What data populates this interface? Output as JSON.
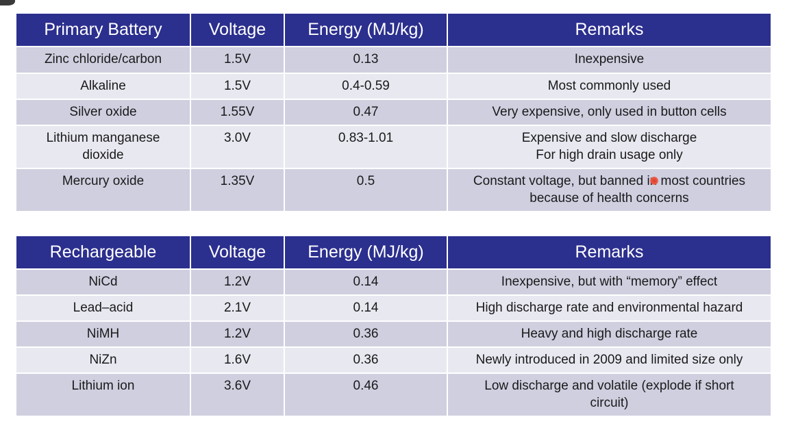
{
  "primary_table": {
    "headers": [
      "Primary Battery",
      "Voltage",
      "Energy (MJ/kg)",
      "Remarks"
    ],
    "rows": [
      {
        "battery": [
          "Zinc chloride/carbon"
        ],
        "voltage": "1.5V",
        "energy": "0.13",
        "remarks": [
          "Inexpensive"
        ]
      },
      {
        "battery": [
          "Alkaline"
        ],
        "voltage": "1.5V",
        "energy": "0.4-0.59",
        "remarks": [
          "Most commonly used"
        ]
      },
      {
        "battery": [
          "Silver oxide"
        ],
        "voltage": "1.55V",
        "energy": "0.47",
        "remarks": [
          "Very expensive, only used in button cells"
        ]
      },
      {
        "battery": [
          "Lithium manganese",
          "dioxide"
        ],
        "voltage": "3.0V",
        "energy": "0.83-1.01",
        "remarks": [
          "Expensive and slow discharge",
          "For high drain usage only"
        ]
      },
      {
        "battery": [
          "Mercury oxide"
        ],
        "voltage": "1.35V",
        "energy": "0.5",
        "remarks": [
          "Constant voltage, but banned in most countries",
          "because of health concerns"
        ]
      }
    ]
  },
  "rechargeable_table": {
    "headers": [
      "Rechargeable",
      "Voltage",
      "Energy (MJ/kg)",
      "Remarks"
    ],
    "rows": [
      {
        "battery": [
          "NiCd"
        ],
        "voltage": "1.2V",
        "energy": "0.14",
        "remarks": [
          "Inexpensive, but with “memory” effect"
        ]
      },
      {
        "battery": [
          "Lead–acid"
        ],
        "voltage": "2.1V",
        "energy": "0.14",
        "remarks": [
          "High discharge rate and environmental hazard"
        ]
      },
      {
        "battery": [
          "NiMH"
        ],
        "voltage": "1.2V",
        "energy": "0.36",
        "remarks": [
          "Heavy and high discharge rate"
        ]
      },
      {
        "battery": [
          "NiZn"
        ],
        "voltage": "1.6V",
        "energy": "0.36",
        "remarks": [
          "Newly introduced in 2009 and limited size only"
        ]
      },
      {
        "battery": [
          "Lithium ion"
        ],
        "voltage": "3.6V",
        "energy": "0.46",
        "remarks": [
          "Low discharge and volatile (explode if short",
          "circuit)"
        ]
      }
    ]
  },
  "colors": {
    "header_bg": "#2b2f8e",
    "row_odd": "#cfcfe0",
    "row_even": "#e8e8f1",
    "cursor_highlight": "#e03a2a"
  }
}
